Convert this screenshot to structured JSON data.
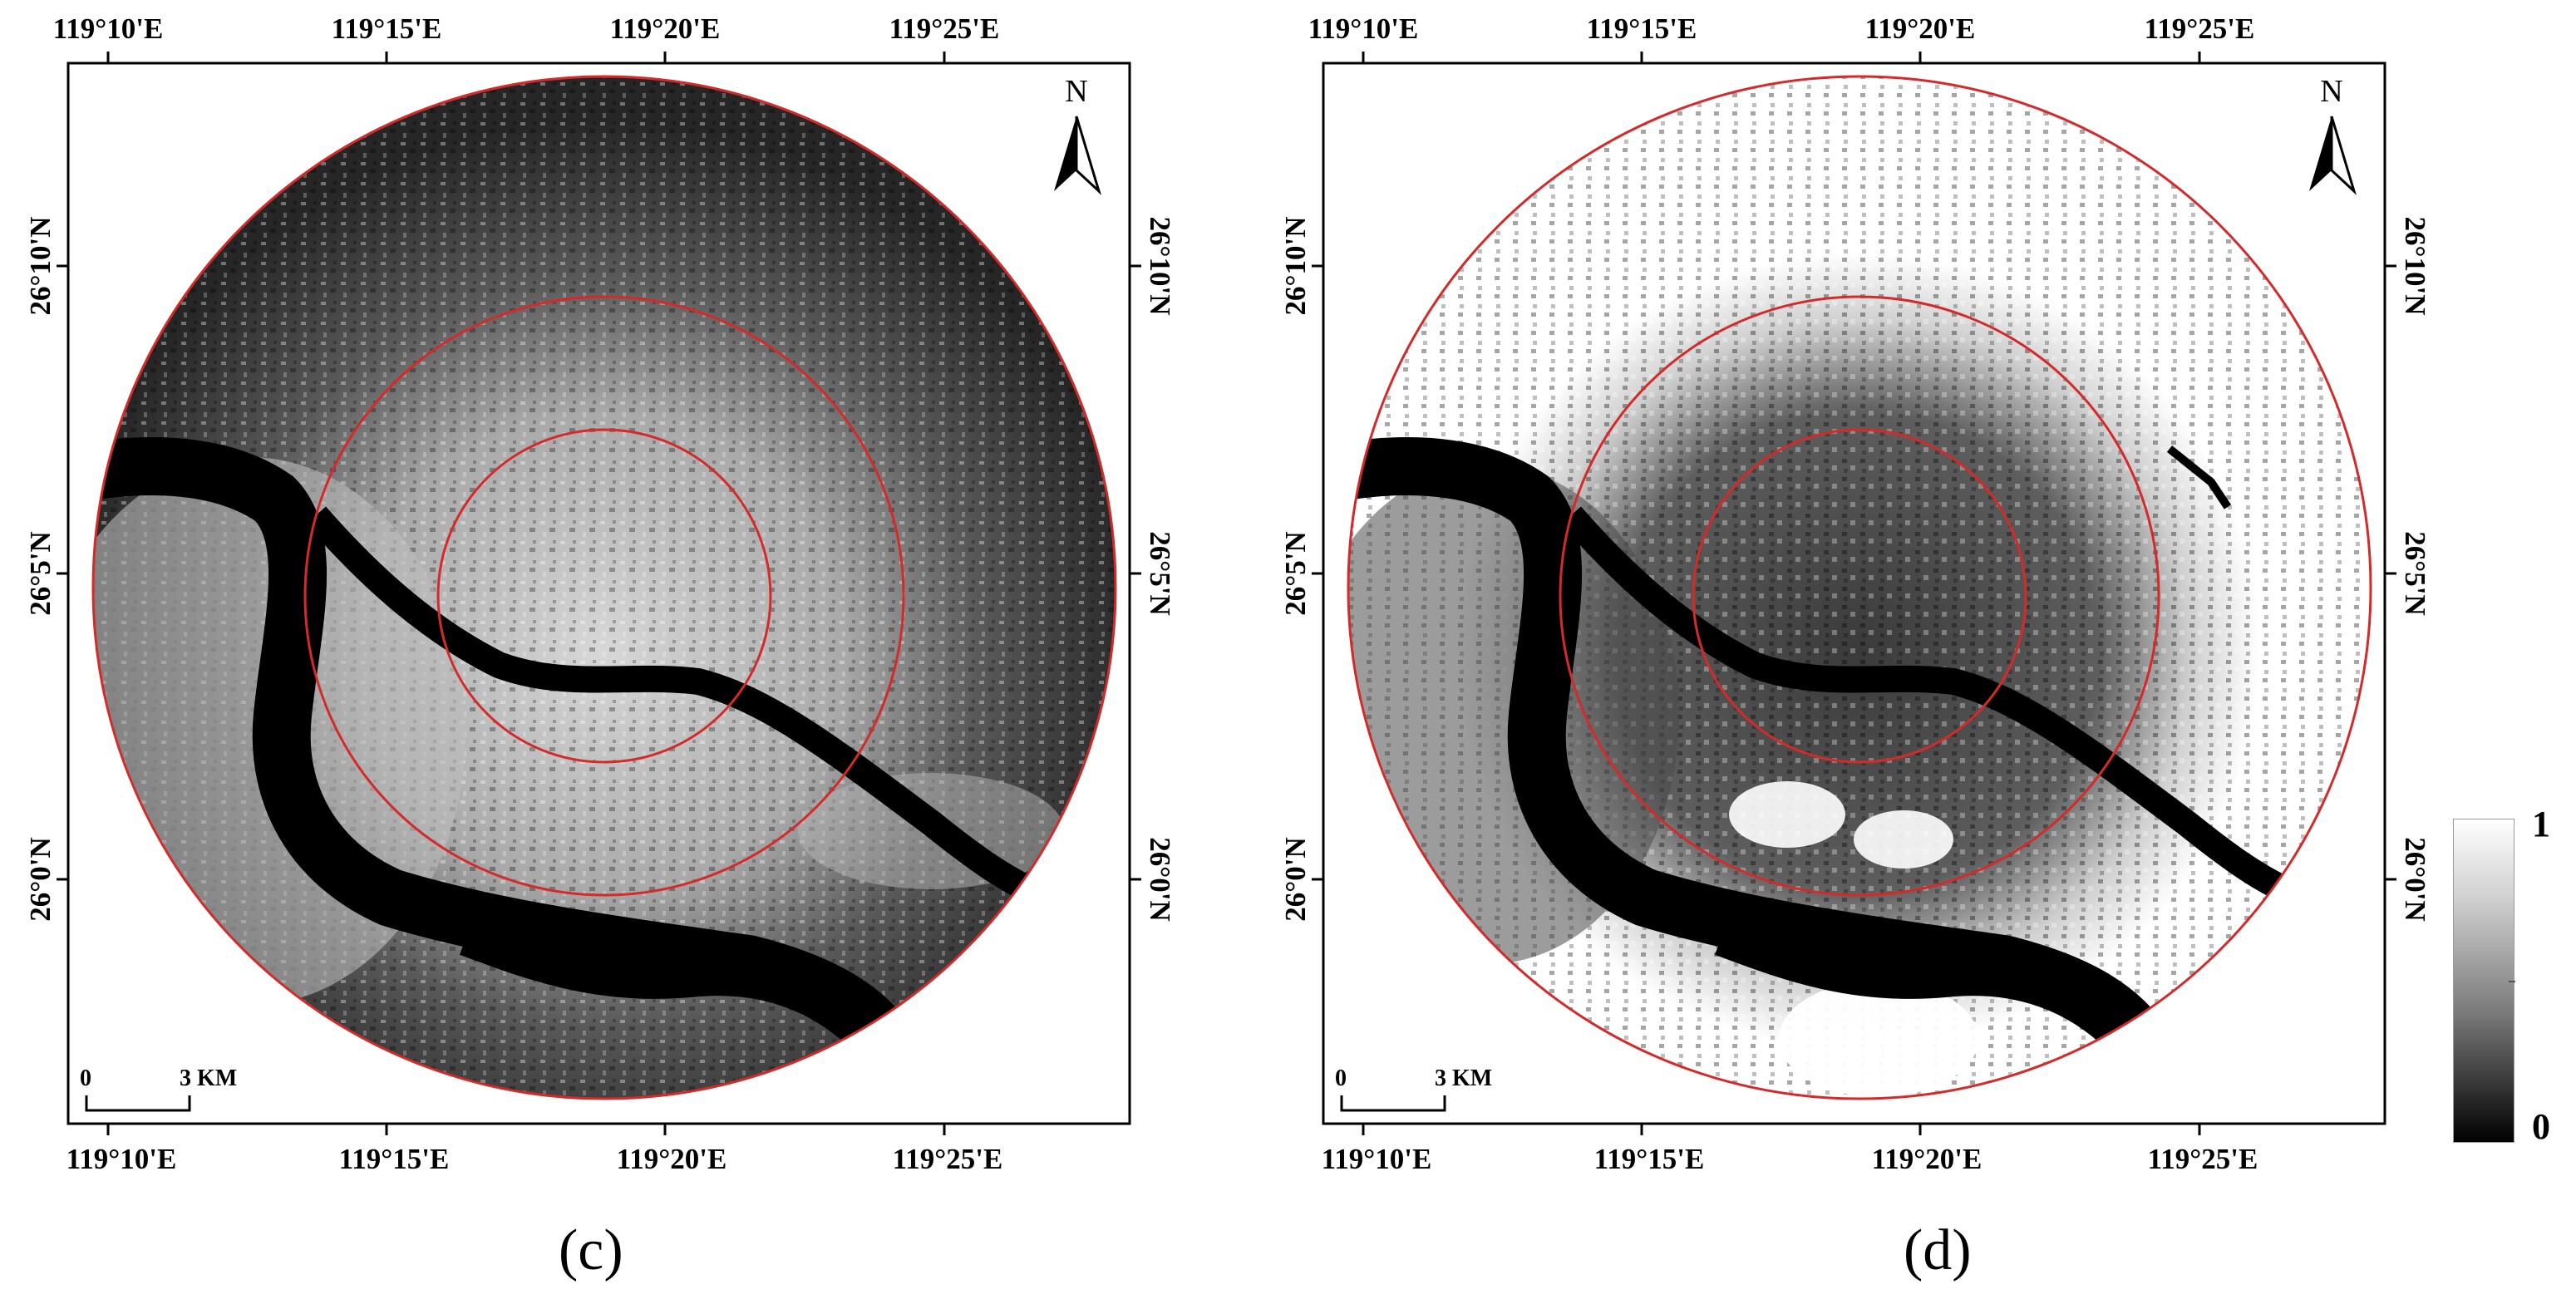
{
  "panels": [
    {
      "id": "c",
      "caption": "(c)",
      "style": "dark",
      "top_labels": [
        "119°10'E",
        "119°15'E",
        "119°20'E",
        "119°25'E"
      ],
      "bottom_labels": [
        "119°10'E",
        "119°15'E",
        "119°20'E",
        "119°25'E"
      ],
      "left_labels": [
        "26°10'N",
        "26°5'N",
        "26°0'N"
      ],
      "right_labels": [
        "26°10'N",
        "26°5'N",
        "26°0'N"
      ],
      "north_label": "N",
      "scale_zero": "0",
      "scale_label": "3 KM"
    },
    {
      "id": "d",
      "caption": "(d)",
      "style": "light",
      "top_labels": [
        "119°10'E",
        "119°15'E",
        "119°20'E",
        "119°25'E"
      ],
      "bottom_labels": [
        "119°10'E",
        "119°15'E",
        "119°20'E",
        "119°25'E"
      ],
      "left_labels": [
        "26°10'N",
        "26°5'N",
        "26°0'N"
      ],
      "right_labels": [
        "26°10'N",
        "26°5'N",
        "26°0'N"
      ],
      "north_label": "N",
      "scale_zero": "0",
      "scale_label": "3 KM"
    }
  ],
  "colorbar": {
    "max_label": "1",
    "min_label": "0"
  },
  "colors": {
    "ring": "#d42a2a",
    "river": "#000000"
  }
}
